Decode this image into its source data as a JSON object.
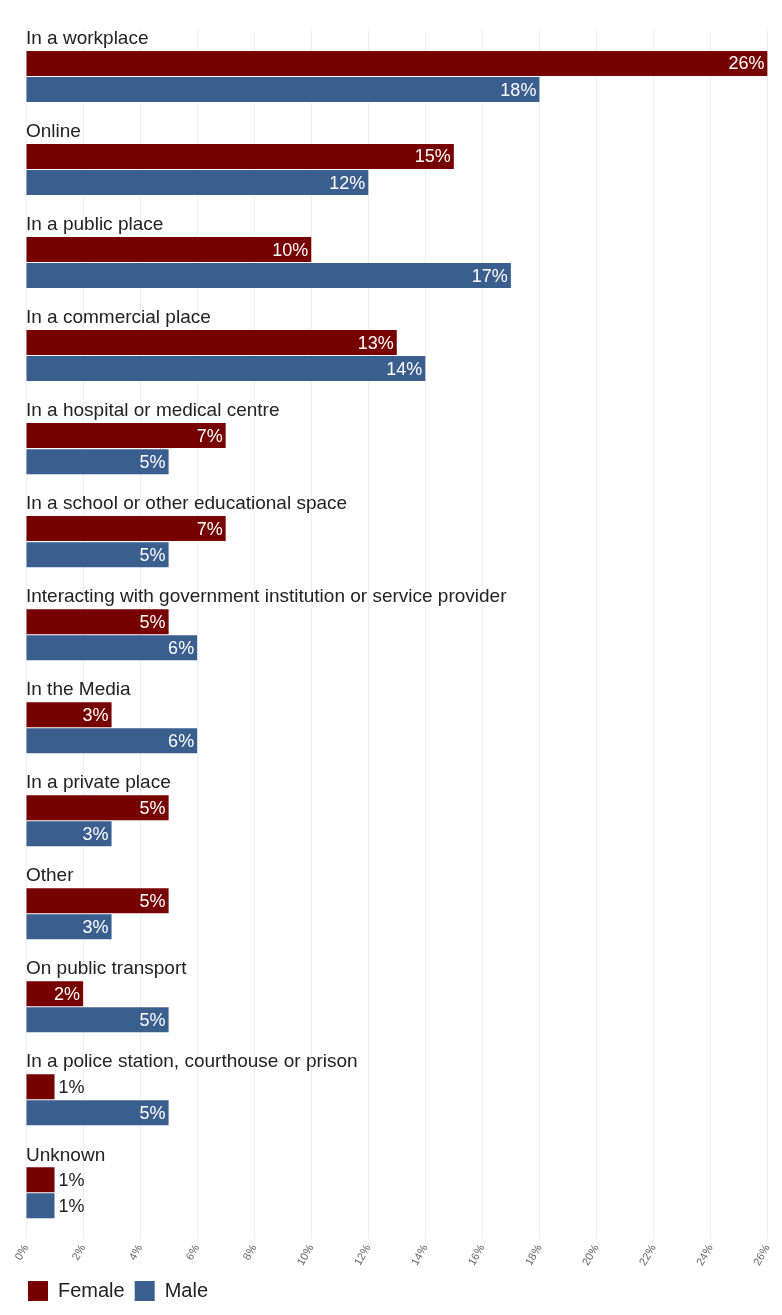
{
  "chart_data": {
    "type": "bar",
    "orientation": "horizontal",
    "categories": [
      "In a workplace",
      "Online",
      "In a public place",
      "In a commercial place",
      "In a hospital or medical centre",
      "In a school or other educational space",
      "Interacting with government institution or service provider",
      "In the Media",
      "In a private place",
      "Other",
      "On public transport",
      "In a police station, courthouse or prison",
      "Unknown"
    ],
    "series": [
      {
        "name": "Female",
        "color": "#770000",
        "values": [
          26,
          15,
          10,
          13,
          7,
          7,
          5,
          3,
          5,
          5,
          2,
          1,
          1
        ],
        "value_labels": [
          "26%",
          "15%",
          "10%",
          "13%",
          "7%",
          "7%",
          "5%",
          "3%",
          "5%",
          "5%",
          "2%",
          "1%",
          "1%"
        ]
      },
      {
        "name": "Male",
        "color": "#3a5f8f",
        "values": [
          18,
          12,
          17,
          14,
          5,
          5,
          6,
          6,
          3,
          3,
          5,
          5,
          1
        ],
        "value_labels": [
          "18%",
          "12%",
          "17%",
          "14%",
          "5%",
          "5%",
          "6%",
          "6%",
          "3%",
          "3%",
          "5%",
          "5%",
          "1%"
        ]
      }
    ],
    "xlim": [
      0,
      26
    ],
    "xticks": [
      {
        "value": 0,
        "label": "0%"
      },
      {
        "value": 2,
        "label": "2%"
      },
      {
        "value": 4,
        "label": "4%"
      },
      {
        "value": 6,
        "label": "6%"
      },
      {
        "value": 8,
        "label": "8%"
      },
      {
        "value": 10,
        "label": "10%"
      },
      {
        "value": 12,
        "label": "12%"
      },
      {
        "value": 14,
        "label": "14%"
      },
      {
        "value": 16,
        "label": "16%"
      },
      {
        "value": 18,
        "label": "18%"
      },
      {
        "value": 20,
        "label": "20%"
      },
      {
        "value": 22,
        "label": "22%"
      },
      {
        "value": 24,
        "label": "24%"
      },
      {
        "value": 26,
        "label": "26%"
      }
    ],
    "grid": "x",
    "legend": "bottom left"
  }
}
